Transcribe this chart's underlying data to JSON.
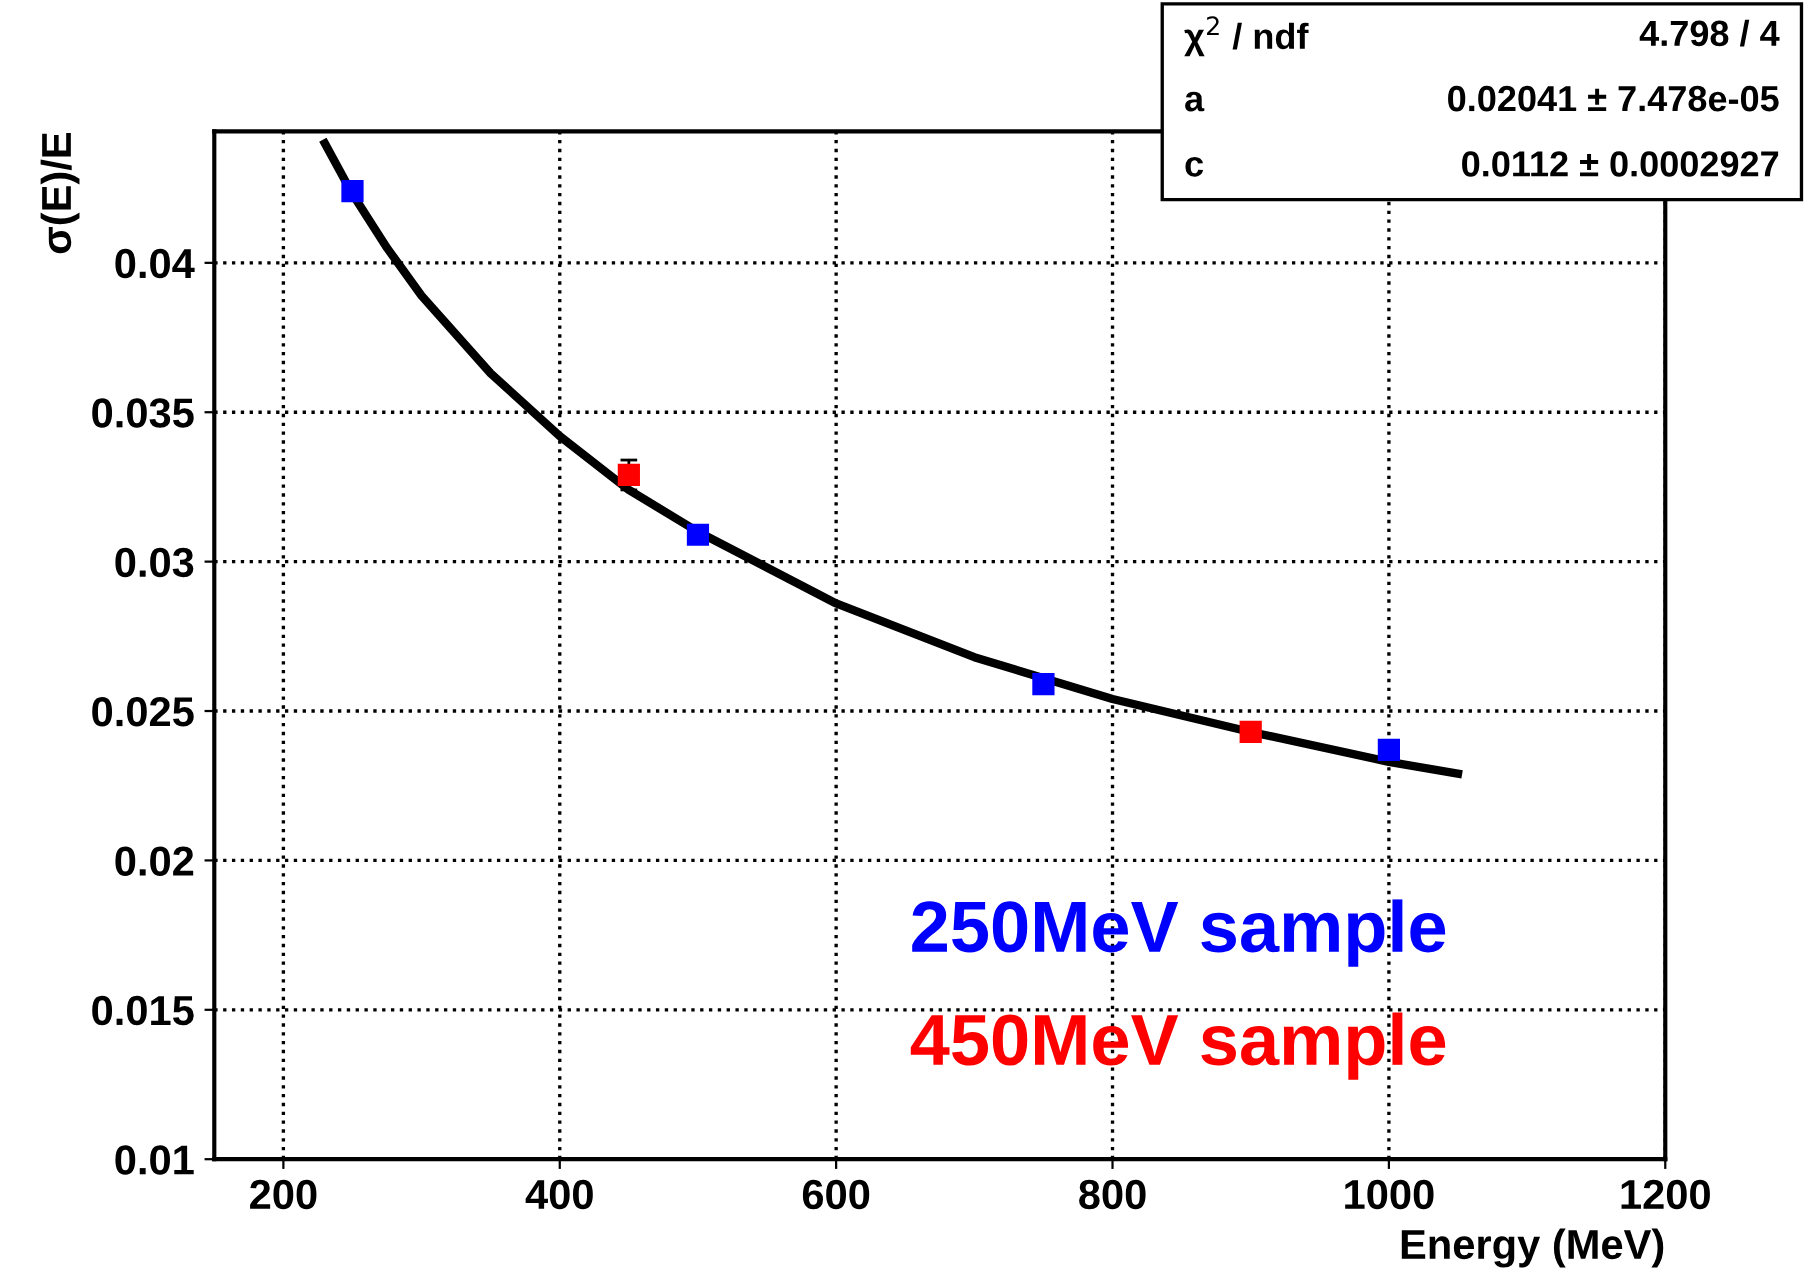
{
  "chart_data": {
    "type": "scatter",
    "xlabel": "Energy (MeV)",
    "ylabel": "σ(E)/E",
    "xlim": [
      150,
      1200
    ],
    "xticks": [
      200,
      400,
      600,
      800,
      1000,
      1200
    ],
    "ylim": [
      0.01,
      0.0444
    ],
    "yticks": [
      0.01,
      0.015,
      0.02,
      0.025,
      0.03,
      0.035,
      0.04
    ],
    "grid": true,
    "legend": "bottom right",
    "series": [
      {
        "name": "250MeV sample",
        "color": "#0000ff",
        "marker": "square",
        "x": [
          250,
          500,
          750,
          1000
        ],
        "values": [
          0.0424,
          0.0309,
          0.0259,
          0.0237
        ]
      },
      {
        "name": "450MeV sample",
        "color": "#ff0000",
        "marker": "square",
        "x": [
          450,
          900
        ],
        "values": [
          0.0329,
          0.0243
        ],
        "errors": [
          0.0005,
          null
        ]
      },
      {
        "type": "line",
        "color": "#000000",
        "line_style": "solid",
        "marker": "none",
        "x": [
          230,
          250,
          275,
          300,
          350,
          400,
          450,
          500,
          600,
          700,
          800,
          900,
          1000,
          1050
        ],
        "values": [
          0.044,
          0.0423,
          0.0405,
          0.0389,
          0.0363,
          0.0342,
          0.0324,
          0.031,
          0.0286,
          0.0268,
          0.0254,
          0.0243,
          0.0233,
          0.0229
        ]
      }
    ],
    "annotations": [
      "χ$^{2}$ / ndf",
      "4.798 / 4",
      "a",
      "0.02041 ± 7.478e-05",
      "c",
      "0.0112 ± 0.0002927"
    ]
  }
}
